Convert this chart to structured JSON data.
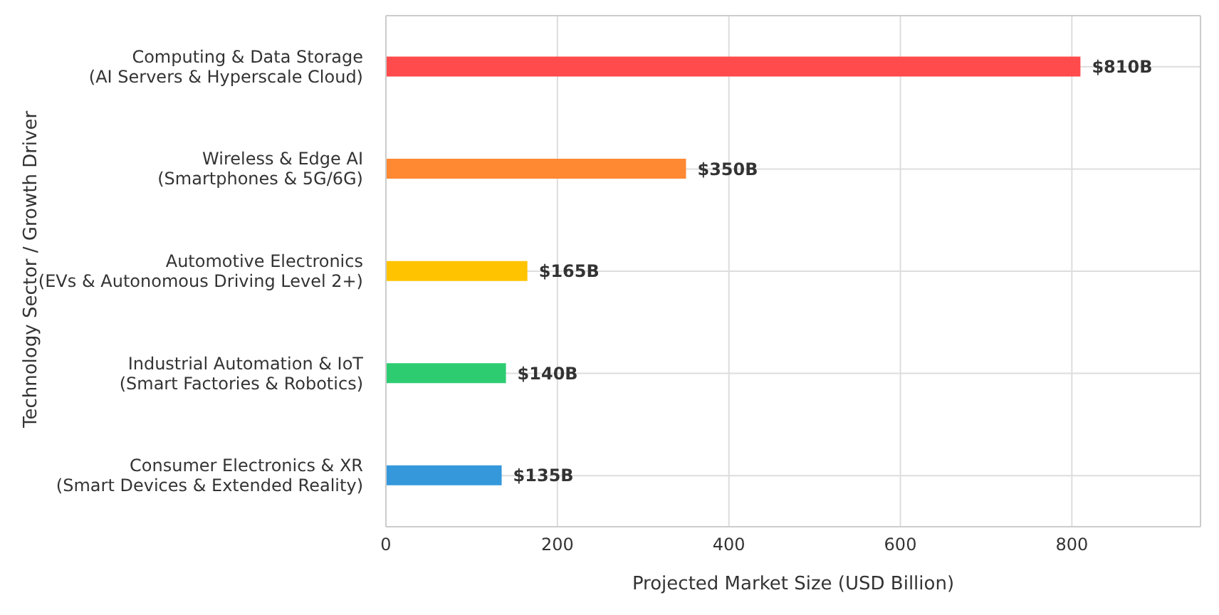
{
  "chart_data": {
    "type": "bar",
    "orientation": "horizontal",
    "xlabel": "Projected Market Size (USD Billion)",
    "ylabel": "Technology Sector / Growth Driver",
    "categories": [
      "Computing & Data Storage\n(AI Servers & Hyperscale Cloud)",
      "Wireless & Edge AI\n(Smartphones & 5G/6G)",
      "Automotive Electronics\n(EVs & Autonomous Driving Level 2+)",
      "Industrial Automation & IoT\n(Smart Factories & Robotics)",
      "Consumer Electronics & XR\n(Smart Devices & Extended Reality)"
    ],
    "values": [
      810,
      350,
      165,
      140,
      135
    ],
    "colors": [
      "#ff4b4b",
      "#ff8833",
      "#ffc300",
      "#2ecc71",
      "#3498db"
    ],
    "value_labels": [
      "$810B",
      "$350B",
      "$165B",
      "$140B",
      "$135B"
    ],
    "xlim": [
      0,
      950
    ],
    "xticks": [
      0,
      200,
      400,
      600,
      800
    ],
    "grid": true,
    "legend": false
  }
}
